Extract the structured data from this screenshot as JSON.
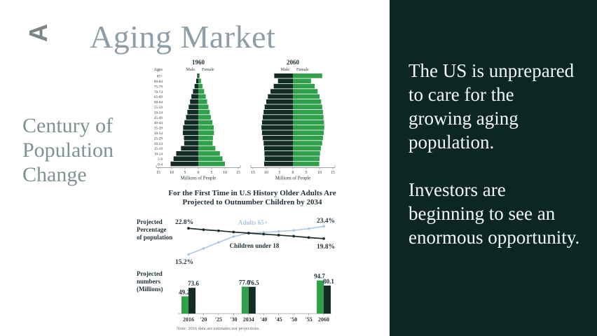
{
  "slide": {
    "logo_letter": "A",
    "title": "Aging Market",
    "subtitle_lines": [
      "Century of",
      "Population",
      "Change"
    ]
  },
  "right_panel": {
    "background": "#0c2723",
    "paragraphs": [
      "The US is unprepared to care for the growing aging population.",
      "Investors are beginning to see an enormous opportunity."
    ]
  },
  "colors": {
    "male_bar": "#132c26",
    "female_bar": "#30a04b",
    "children_line": "#1b2b2e",
    "adults_line": "#a9c7e2",
    "navy_text": "#1f3038",
    "note_gray": "#5f676d",
    "axis_gray": "#6a6f6f"
  },
  "chart_data": [
    {
      "type": "bar",
      "variant": "population-pyramid",
      "title": "1960",
      "left_label": "Male",
      "right_label": "Female",
      "ages_header": "Ages",
      "xlabel": "Millions of People",
      "x_ticks": [
        "15",
        "10",
        "5",
        "0",
        "5",
        "10",
        "15"
      ],
      "xlim": [
        0,
        15
      ],
      "age_groups": [
        "85+",
        "80-84",
        "75-79",
        "70-74",
        "65-69",
        "60-64",
        "55-59",
        "50-54",
        "45-49",
        "40-44",
        "35-39",
        "30-34",
        "25-29",
        "20-24",
        "15-19",
        "10-14",
        "5-9",
        "0-4"
      ],
      "series": [
        {
          "name": "Male",
          "values": [
            0.4,
            0.8,
            1.4,
            2.0,
            2.6,
            3.1,
            3.6,
            4.1,
            4.6,
            5.2,
            5.7,
            5.8,
            5.4,
            5.3,
            6.5,
            8.3,
            9.3,
            10.4
          ]
        },
        {
          "name": "Female",
          "values": [
            0.5,
            1.0,
            1.6,
            2.2,
            2.8,
            3.3,
            3.8,
            4.3,
            4.7,
            5.3,
            5.8,
            5.9,
            5.5,
            5.4,
            6.4,
            8.1,
            9.1,
            10.0
          ]
        }
      ]
    },
    {
      "type": "bar",
      "variant": "population-pyramid",
      "title": "2060",
      "left_label": "Male",
      "right_label": "Female",
      "xlabel": "Millions of People",
      "x_ticks": [
        "15",
        "10",
        "5",
        "0",
        "5",
        "10",
        "15"
      ],
      "xlim": [
        0,
        15
      ],
      "age_groups": [
        "85+",
        "80-84",
        "75-79",
        "70-74",
        "65-69",
        "60-64",
        "55-59",
        "50-54",
        "45-49",
        "40-44",
        "35-39",
        "30-34",
        "25-29",
        "20-24",
        "15-19",
        "10-14",
        "5-9",
        "0-4"
      ],
      "series": [
        {
          "name": "Male",
          "values": [
            7.0,
            5.6,
            7.2,
            8.4,
            9.4,
            10.0,
            10.6,
            11.0,
            11.3,
            11.6,
            11.8,
            11.6,
            11.3,
            11.0,
            10.8,
            10.7,
            10.6,
            10.8
          ]
        },
        {
          "name": "Female",
          "values": [
            11.0,
            6.8,
            8.2,
            9.3,
            10.0,
            10.6,
            11.0,
            11.3,
            11.5,
            11.7,
            11.8,
            11.6,
            11.3,
            11.0,
            10.5,
            10.2,
            10.0,
            9.9
          ]
        }
      ]
    },
    {
      "type": "line",
      "title_lines": [
        "For the First Time in U.S History Older Adults Are",
        "Projected to Outnumber Children by 2034"
      ],
      "ylabel_lines": [
        "Projected",
        "Percentage",
        "of population"
      ],
      "x": [
        2016,
        2020,
        2025,
        2030,
        2034,
        2040,
        2045,
        2050,
        2055,
        2060
      ],
      "ylim": [
        15,
        24
      ],
      "series": [
        {
          "name": "Children under 18",
          "values": [
            22.8,
            22.4,
            22.1,
            21.7,
            21.4,
            21.1,
            20.8,
            20.5,
            20.1,
            19.8
          ]
        },
        {
          "name": "Adults 65+",
          "values": [
            15.2,
            16.9,
            18.7,
            20.4,
            21.4,
            21.6,
            21.9,
            22.2,
            22.7,
            23.4
          ]
        }
      ],
      "annotations": [
        {
          "label": "22.8%",
          "series": "Children under 18",
          "point": "first"
        },
        {
          "label": "19.8%",
          "series": "Children under 18",
          "point": "last"
        },
        {
          "label": "15.2%",
          "series": "Adults 65+",
          "point": "first"
        },
        {
          "label": "23.4%",
          "series": "Adults 65+",
          "point": "last"
        }
      ]
    },
    {
      "type": "bar",
      "ylabel_lines": [
        "Projected",
        "numbers",
        "(Millions)"
      ],
      "categories": [
        "2016",
        "'20",
        "'25",
        "'30",
        "2034",
        "'40",
        "'45",
        "'50",
        "'55",
        "2060"
      ],
      "ylim": [
        0,
        100
      ],
      "series": [
        {
          "name": "Adults 65+",
          "values": [
            49.2,
            null,
            null,
            null,
            77.0,
            null,
            null,
            null,
            null,
            94.7
          ]
        },
        {
          "name": "Children under 18",
          "values": [
            73.6,
            null,
            null,
            null,
            76.5,
            null,
            null,
            null,
            null,
            80.1
          ]
        }
      ],
      "note": "Note: 2016 data are estimates not projections."
    }
  ]
}
